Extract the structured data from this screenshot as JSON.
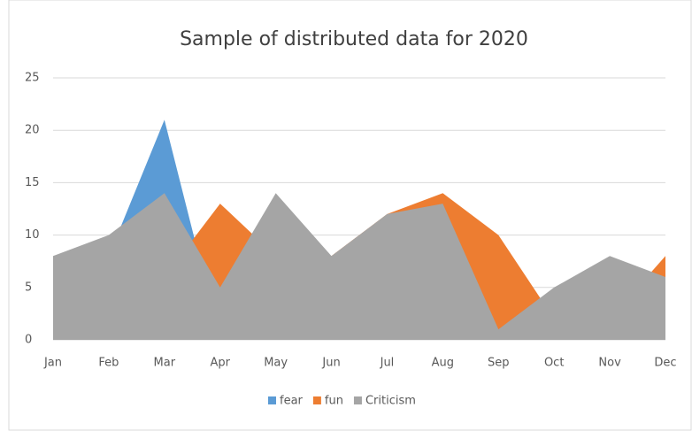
{
  "chart_data": {
    "type": "area",
    "title": "Sample of distributed data for 2020",
    "categories": [
      "Jan",
      "Feb",
      "Mar",
      "Apr",
      "May",
      "Jun",
      "Jul",
      "Aug",
      "Sep",
      "Oct",
      "Nov",
      "Dec"
    ],
    "series": [
      {
        "name": "fear",
        "color": "#5b9bd5",
        "values": [
          3,
          8,
          21,
          0,
          4,
          2,
          5,
          6,
          0,
          1,
          3,
          2
        ]
      },
      {
        "name": "fun",
        "color": "#ed7d31",
        "values": [
          5,
          7,
          6,
          13,
          8,
          8,
          12,
          14,
          10,
          2,
          2,
          8
        ]
      },
      {
        "name": "Criticism",
        "color": "#a5a5a5",
        "values": [
          8,
          10,
          14,
          5,
          14,
          8,
          12,
          13,
          1,
          5,
          8,
          6
        ]
      }
    ],
    "ylim": [
      0,
      25
    ],
    "yticks": [
      0,
      5,
      10,
      15,
      20,
      25
    ],
    "grid": true,
    "legend": "bottom"
  }
}
